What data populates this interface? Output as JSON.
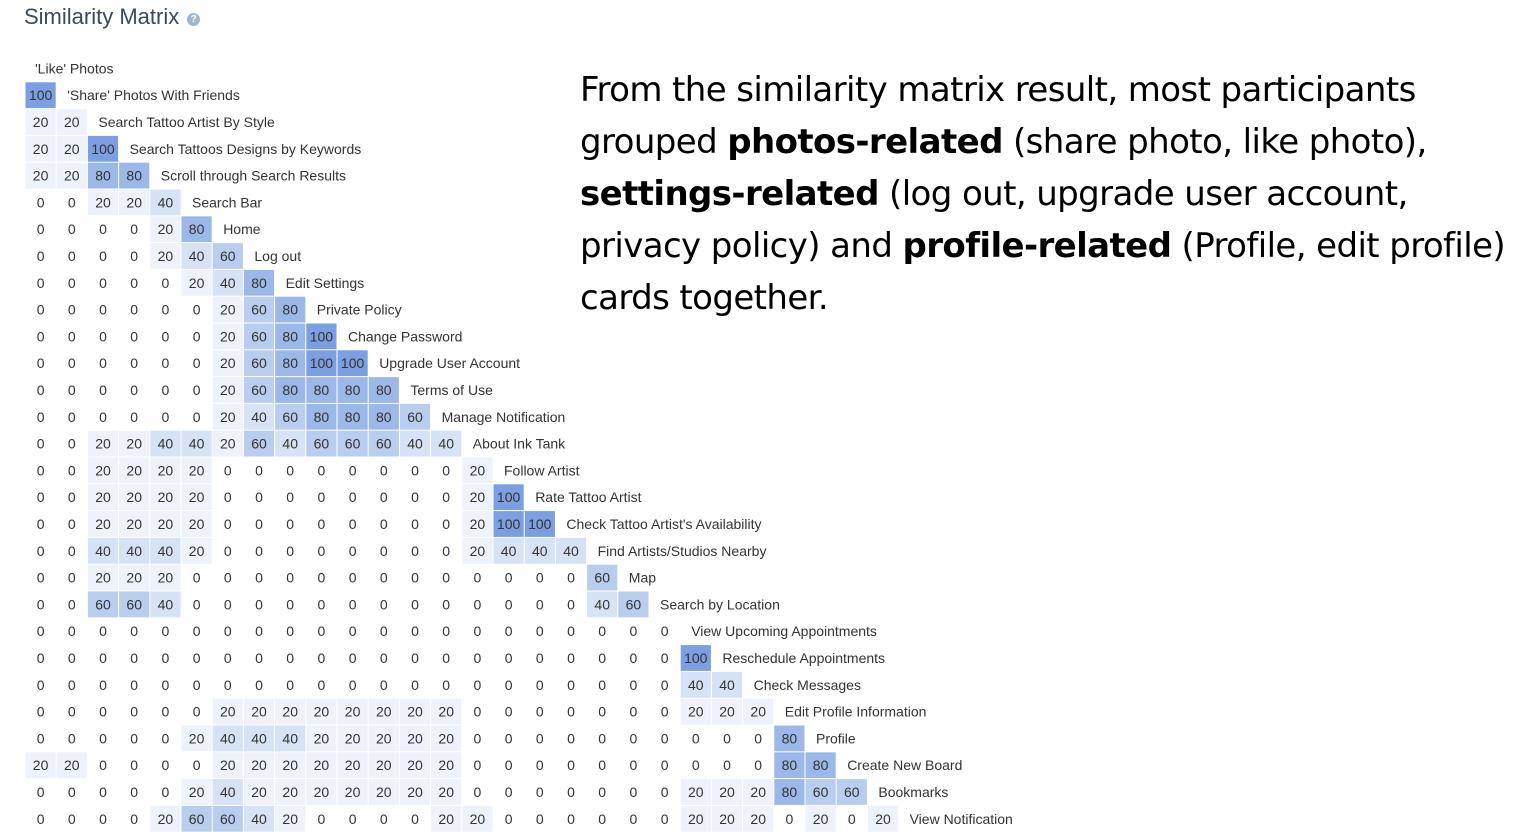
{
  "header": {
    "title": "Similarity Matrix",
    "help_icon": "question-circle-icon"
  },
  "colors": {
    "level_20": "#eef3fb",
    "level_40": "#d6e2f5",
    "level_60": "#b9cdee",
    "level_80": "#9cb8e8",
    "level_100": "#7b9fe0",
    "text": "#333333"
  },
  "chart_data": {
    "type": "heatmap",
    "title": "Similarity Matrix",
    "layout": "lower-triangular",
    "labels": [
      "'Like' Photos",
      "'Share' Photos With Friends",
      "Search Tattoo Artist By Style",
      "Search Tattoos Designs by Keywords",
      "Scroll through Search Results",
      "Search Bar",
      "Home",
      "Log out",
      "Edit Settings",
      "Private Policy",
      "Change Password",
      "Upgrade User Account",
      "Terms of Use",
      "Manage Notification",
      "About Ink Tank",
      "Follow Artist",
      "Rate Tattoo Artist",
      "Check Tattoo Artist's Availability",
      "Find Artists/Studios Nearby",
      "Map",
      "Search by Location",
      "View Upcoming Appointments",
      "Reschedule Appointments",
      "Check Messages",
      "Edit Profile Information",
      "Profile",
      "Create New Board",
      "Bookmarks",
      "View Notification"
    ],
    "rows": [
      [],
      [
        100
      ],
      [
        20,
        20
      ],
      [
        20,
        20,
        100
      ],
      [
        20,
        20,
        80,
        80
      ],
      [
        0,
        0,
        20,
        20,
        40
      ],
      [
        0,
        0,
        0,
        0,
        20,
        80
      ],
      [
        0,
        0,
        0,
        0,
        20,
        40,
        60
      ],
      [
        0,
        0,
        0,
        0,
        0,
        20,
        40,
        80
      ],
      [
        0,
        0,
        0,
        0,
        0,
        0,
        20,
        60,
        80
      ],
      [
        0,
        0,
        0,
        0,
        0,
        0,
        20,
        60,
        80,
        100
      ],
      [
        0,
        0,
        0,
        0,
        0,
        0,
        20,
        60,
        80,
        100,
        100
      ],
      [
        0,
        0,
        0,
        0,
        0,
        0,
        20,
        60,
        80,
        80,
        80,
        80
      ],
      [
        0,
        0,
        0,
        0,
        0,
        0,
        20,
        40,
        60,
        80,
        80,
        80,
        60
      ],
      [
        0,
        0,
        20,
        20,
        40,
        40,
        20,
        60,
        40,
        60,
        60,
        60,
        40,
        40
      ],
      [
        0,
        0,
        20,
        20,
        20,
        20,
        0,
        0,
        0,
        0,
        0,
        0,
        0,
        0,
        20
      ],
      [
        0,
        0,
        20,
        20,
        20,
        20,
        0,
        0,
        0,
        0,
        0,
        0,
        0,
        0,
        20,
        100
      ],
      [
        0,
        0,
        20,
        20,
        20,
        20,
        0,
        0,
        0,
        0,
        0,
        0,
        0,
        0,
        20,
        100,
        100
      ],
      [
        0,
        0,
        40,
        40,
        40,
        20,
        0,
        0,
        0,
        0,
        0,
        0,
        0,
        0,
        20,
        40,
        40,
        40
      ],
      [
        0,
        0,
        20,
        20,
        20,
        0,
        0,
        0,
        0,
        0,
        0,
        0,
        0,
        0,
        0,
        0,
        0,
        0,
        60
      ],
      [
        0,
        0,
        60,
        60,
        40,
        0,
        0,
        0,
        0,
        0,
        0,
        0,
        0,
        0,
        0,
        0,
        0,
        0,
        40,
        60
      ],
      [
        0,
        0,
        0,
        0,
        0,
        0,
        0,
        0,
        0,
        0,
        0,
        0,
        0,
        0,
        0,
        0,
        0,
        0,
        0,
        0,
        0
      ],
      [
        0,
        0,
        0,
        0,
        0,
        0,
        0,
        0,
        0,
        0,
        0,
        0,
        0,
        0,
        0,
        0,
        0,
        0,
        0,
        0,
        0,
        100
      ],
      [
        0,
        0,
        0,
        0,
        0,
        0,
        0,
        0,
        0,
        0,
        0,
        0,
        0,
        0,
        0,
        0,
        0,
        0,
        0,
        0,
        0,
        40,
        40
      ],
      [
        0,
        0,
        0,
        0,
        0,
        0,
        20,
        20,
        20,
        20,
        20,
        20,
        20,
        20,
        0,
        0,
        0,
        0,
        0,
        0,
        0,
        20,
        20,
        20
      ],
      [
        0,
        0,
        0,
        0,
        0,
        20,
        40,
        40,
        40,
        20,
        20,
        20,
        20,
        20,
        0,
        0,
        0,
        0,
        0,
        0,
        0,
        0,
        0,
        0,
        80
      ],
      [
        20,
        20,
        0,
        0,
        0,
        0,
        20,
        20,
        20,
        20,
        20,
        20,
        20,
        20,
        0,
        0,
        0,
        0,
        0,
        0,
        0,
        0,
        0,
        0,
        80,
        80
      ],
      [
        0,
        0,
        0,
        0,
        0,
        20,
        40,
        20,
        20,
        20,
        20,
        20,
        20,
        20,
        0,
        0,
        0,
        0,
        0,
        0,
        0,
        20,
        20,
        20,
        80,
        60,
        60
      ],
      [
        0,
        0,
        0,
        0,
        20,
        60,
        60,
        40,
        20,
        0,
        0,
        0,
        0,
        20,
        20,
        0,
        0,
        0,
        0,
        0,
        0,
        20,
        20,
        20,
        0,
        20,
        0,
        20
      ]
    ]
  },
  "summary": {
    "intro": "From the similarity matrix result, most participants grouped ",
    "photos_label": "photos-related",
    "photos_detail": "  (share photo, like photo), ",
    "settings_label": "settings-related",
    "settings_detail": "  (log out, upgrade user account, privacy policy) and ",
    "profile_label": "profile-related",
    "profile_detail": " (Profile, edit profile) cards together."
  }
}
